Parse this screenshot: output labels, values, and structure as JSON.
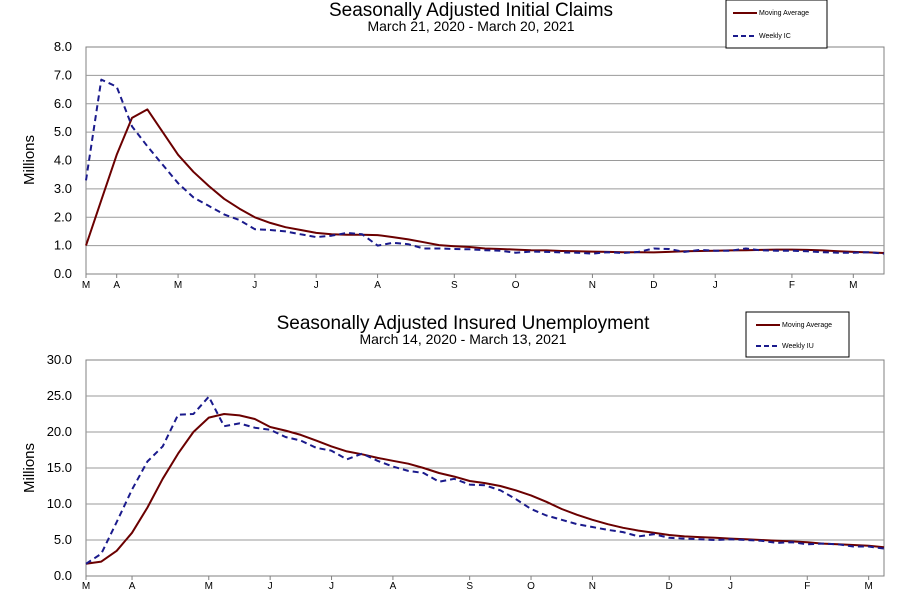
{
  "colors": {
    "moving_average": "#6b0000",
    "weekly": "#1a1a8c",
    "grid": "#9a9a9a",
    "axis": "#808080"
  },
  "chart_data": [
    {
      "id": "initial-claims",
      "type": "line",
      "title": "Seasonally Adjusted Initial Claims",
      "subtitle": "March 21, 2020 - March 20, 2021",
      "ylabel": "Millions",
      "xlabel": "",
      "ylim": [
        0,
        8
      ],
      "yticks": [
        0,
        1,
        2,
        3,
        4,
        5,
        6,
        7,
        8
      ],
      "ytick_labels": [
        "0.0",
        "1.0",
        "2.0",
        "3.0",
        "4.0",
        "5.0",
        "6.0",
        "7.0",
        "8.0"
      ],
      "grid": true,
      "n_weeks": 53,
      "month_ticks": [
        {
          "label": "M",
          "week": 0
        },
        {
          "label": "A",
          "week": 2
        },
        {
          "label": "M",
          "week": 6
        },
        {
          "label": "J",
          "week": 11
        },
        {
          "label": "J",
          "week": 15
        },
        {
          "label": "A",
          "week": 19
        },
        {
          "label": "S",
          "week": 24
        },
        {
          "label": "O",
          "week": 28
        },
        {
          "label": "N",
          "week": 33
        },
        {
          "label": "D",
          "week": 37
        },
        {
          "label": "J",
          "week": 41
        },
        {
          "label": "F",
          "week": 46
        },
        {
          "label": "M",
          "week": 50
        }
      ],
      "legend": {
        "position": "top-right",
        "entries": [
          "Moving Average",
          "Weekly IC"
        ]
      },
      "series": [
        {
          "name": "Moving Average",
          "style": "solid",
          "values": [
            1.0,
            2.6,
            4.2,
            5.5,
            5.8,
            5.0,
            4.2,
            3.6,
            3.1,
            2.65,
            2.3,
            2.0,
            1.8,
            1.65,
            1.55,
            1.45,
            1.4,
            1.38,
            1.38,
            1.37,
            1.3,
            1.22,
            1.12,
            1.02,
            0.98,
            0.95,
            0.9,
            0.88,
            0.86,
            0.84,
            0.83,
            0.81,
            0.8,
            0.79,
            0.78,
            0.77,
            0.77,
            0.76,
            0.78,
            0.8,
            0.81,
            0.82,
            0.83,
            0.84,
            0.85,
            0.86,
            0.86,
            0.85,
            0.83,
            0.8,
            0.78,
            0.76,
            0.74
          ]
        },
        {
          "name": "Weekly IC",
          "style": "dashed",
          "values": [
            3.3,
            6.85,
            6.6,
            5.2,
            4.5,
            3.85,
            3.2,
            2.7,
            2.4,
            2.1,
            1.9,
            1.58,
            1.55,
            1.5,
            1.4,
            1.3,
            1.35,
            1.45,
            1.4,
            1.0,
            1.1,
            1.05,
            0.9,
            0.9,
            0.88,
            0.87,
            0.84,
            0.82,
            0.75,
            0.79,
            0.78,
            0.76,
            0.75,
            0.72,
            0.77,
            0.74,
            0.78,
            0.9,
            0.88,
            0.78,
            0.85,
            0.82,
            0.82,
            0.9,
            0.83,
            0.82,
            0.82,
            0.8,
            0.77,
            0.75,
            0.75,
            0.77,
            0.72
          ]
        }
      ]
    },
    {
      "id": "insured-unemployment",
      "type": "line",
      "title": "Seasonally Adjusted Insured Unemployment",
      "subtitle": "March 14, 2020 - March 13, 2021",
      "ylabel": "Millions",
      "xlabel": "",
      "ylim": [
        0,
        30
      ],
      "yticks": [
        0,
        5,
        10,
        15,
        20,
        25,
        30
      ],
      "ytick_labels": [
        "0.0",
        "5.0",
        "10.0",
        "15.0",
        "20.0",
        "25.0",
        "30.0"
      ],
      "grid": true,
      "n_weeks": 53,
      "month_ticks": [
        {
          "label": "M",
          "week": 0
        },
        {
          "label": "A",
          "week": 3
        },
        {
          "label": "M",
          "week": 8
        },
        {
          "label": "J",
          "week": 12
        },
        {
          "label": "J",
          "week": 16
        },
        {
          "label": "A",
          "week": 20
        },
        {
          "label": "S",
          "week": 25
        },
        {
          "label": "O",
          "week": 29
        },
        {
          "label": "N",
          "week": 33
        },
        {
          "label": "D",
          "week": 38
        },
        {
          "label": "J",
          "week": 42
        },
        {
          "label": "F",
          "week": 47
        },
        {
          "label": "M",
          "week": 51
        }
      ],
      "legend": {
        "position": "top-right",
        "entries": [
          "Moving Average",
          "Weekly IU"
        ]
      },
      "series": [
        {
          "name": "Moving Average",
          "style": "solid",
          "values": [
            1.7,
            2.0,
            3.5,
            6.0,
            9.5,
            13.5,
            17.0,
            20.0,
            22.0,
            22.5,
            22.3,
            21.8,
            20.7,
            20.2,
            19.6,
            18.8,
            18.0,
            17.3,
            16.9,
            16.4,
            16.0,
            15.6,
            15.0,
            14.3,
            13.8,
            13.2,
            12.9,
            12.5,
            11.9,
            11.2,
            10.3,
            9.3,
            8.5,
            7.8,
            7.2,
            6.7,
            6.3,
            6.0,
            5.7,
            5.5,
            5.4,
            5.3,
            5.2,
            5.1,
            5.0,
            4.9,
            4.8,
            4.7,
            4.5,
            4.4,
            4.3,
            4.2,
            4.0
          ]
        },
        {
          "name": "Weekly IU",
          "style": "dashed",
          "values": [
            1.7,
            3.1,
            7.5,
            12.0,
            15.9,
            18.0,
            22.4,
            22.5,
            24.9,
            20.8,
            21.2,
            20.6,
            20.3,
            19.3,
            18.8,
            17.8,
            17.4,
            16.2,
            17.0,
            16.0,
            15.2,
            14.6,
            14.3,
            13.1,
            13.5,
            12.7,
            12.6,
            11.9,
            10.7,
            9.3,
            8.4,
            7.8,
            7.2,
            6.8,
            6.4,
            6.1,
            5.5,
            5.8,
            5.3,
            5.2,
            5.1,
            5.0,
            5.1,
            5.0,
            4.9,
            4.6,
            4.7,
            4.4,
            4.5,
            4.4,
            4.1,
            4.1,
            3.8
          ]
        }
      ]
    }
  ]
}
